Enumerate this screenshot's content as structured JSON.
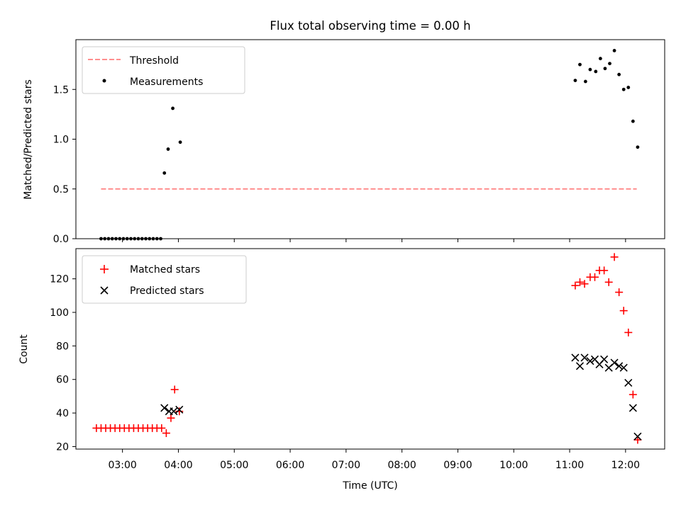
{
  "figure": {
    "title": "Flux total observing time = 0.00 h",
    "xlabel": "Time (UTC)",
    "x_ticks": [
      "03:00",
      "04:00",
      "05:00",
      "06:00",
      "07:00",
      "08:00",
      "09:00",
      "10:00",
      "11:00",
      "12:00"
    ]
  },
  "colors": {
    "threshold": "#ff7f7f",
    "measurement": "#000000",
    "matched": "#ff0000",
    "predicted": "#000000"
  },
  "chart_data": [
    {
      "type": "scatter",
      "title": "Flux total observing time = 0.00 h",
      "ylabel": "Matched/Predicted stars",
      "xlim": [
        "02:10",
        "12:42"
      ],
      "ylim": [
        0,
        2.0
      ],
      "y_ticks": [
        0.0,
        0.5,
        1.0,
        1.5
      ],
      "legend_position": "top-left",
      "threshold": {
        "name": "Threshold",
        "value": 0.5,
        "x_start": "02:37",
        "x_end": "12:12",
        "style": "dashed"
      },
      "series": [
        {
          "name": "Measurements",
          "points": [
            [
              "02:37",
              0.0
            ],
            [
              "02:41",
              0.0
            ],
            [
              "02:45",
              0.0
            ],
            [
              "02:49",
              0.0
            ],
            [
              "02:53",
              0.0
            ],
            [
              "02:57",
              0.0
            ],
            [
              "03:01",
              0.0
            ],
            [
              "03:05",
              0.0
            ],
            [
              "03:09",
              0.0
            ],
            [
              "03:13",
              0.0
            ],
            [
              "03:17",
              0.0
            ],
            [
              "03:21",
              0.0
            ],
            [
              "03:25",
              0.0
            ],
            [
              "03:29",
              0.0
            ],
            [
              "03:33",
              0.0
            ],
            [
              "03:37",
              0.0
            ],
            [
              "03:41",
              0.0
            ],
            [
              "03:45",
              0.66
            ],
            [
              "03:49",
              0.9
            ],
            [
              "03:54",
              1.31
            ],
            [
              "04:02",
              0.97
            ],
            [
              "11:06",
              1.59
            ],
            [
              "11:11",
              1.75
            ],
            [
              "11:17",
              1.58
            ],
            [
              "11:22",
              1.7
            ],
            [
              "11:28",
              1.68
            ],
            [
              "11:33",
              1.81
            ],
            [
              "11:38",
              1.71
            ],
            [
              "11:43",
              1.76
            ],
            [
              "11:48",
              1.89
            ],
            [
              "11:53",
              1.65
            ],
            [
              "11:58",
              1.5
            ],
            [
              "12:03",
              1.52
            ],
            [
              "12:08",
              1.18
            ],
            [
              "12:13",
              0.92
            ]
          ]
        }
      ]
    },
    {
      "type": "scatter",
      "ylabel": "Count",
      "xlabel": "Time (UTC)",
      "xlim": [
        "02:10",
        "12:42"
      ],
      "ylim": [
        18.5,
        138
      ],
      "y_ticks": [
        20,
        40,
        60,
        80,
        100,
        120
      ],
      "legend_position": "top-left",
      "series": [
        {
          "name": "Matched stars",
          "marker": "+",
          "points": [
            [
              "02:32",
              31
            ],
            [
              "02:37",
              31
            ],
            [
              "02:42",
              31
            ],
            [
              "02:47",
              31
            ],
            [
              "02:52",
              31
            ],
            [
              "02:57",
              31
            ],
            [
              "03:02",
              31
            ],
            [
              "03:07",
              31
            ],
            [
              "03:12",
              31
            ],
            [
              "03:17",
              31
            ],
            [
              "03:22",
              31
            ],
            [
              "03:27",
              31
            ],
            [
              "03:32",
              31
            ],
            [
              "03:37",
              31
            ],
            [
              "03:42",
              31
            ],
            [
              "03:47",
              28
            ],
            [
              "03:52",
              37
            ],
            [
              "03:56",
              54
            ],
            [
              "04:01",
              41
            ],
            [
              "11:06",
              116
            ],
            [
              "11:11",
              118
            ],
            [
              "11:16",
              117
            ],
            [
              "11:22",
              121
            ],
            [
              "11:27",
              121
            ],
            [
              "11:32",
              125
            ],
            [
              "11:37",
              125
            ],
            [
              "11:42",
              118
            ],
            [
              "11:48",
              133
            ],
            [
              "11:53",
              112
            ],
            [
              "11:58",
              101
            ],
            [
              "12:03",
              88
            ],
            [
              "12:08",
              51
            ],
            [
              "12:13",
              24
            ]
          ]
        },
        {
          "name": "Predicted stars",
          "marker": "x",
          "points": [
            [
              "03:45",
              43
            ],
            [
              "03:50",
              41
            ],
            [
              "03:55",
              41
            ],
            [
              "04:01",
              42
            ],
            [
              "11:06",
              73
            ],
            [
              "11:11",
              68
            ],
            [
              "11:16",
              73
            ],
            [
              "11:22",
              71
            ],
            [
              "11:27",
              72
            ],
            [
              "11:32",
              69
            ],
            [
              "11:37",
              72
            ],
            [
              "11:42",
              67
            ],
            [
              "11:48",
              70
            ],
            [
              "11:53",
              68
            ],
            [
              "11:58",
              67
            ],
            [
              "12:03",
              58
            ],
            [
              "12:08",
              43
            ],
            [
              "12:13",
              26
            ]
          ]
        }
      ]
    }
  ]
}
